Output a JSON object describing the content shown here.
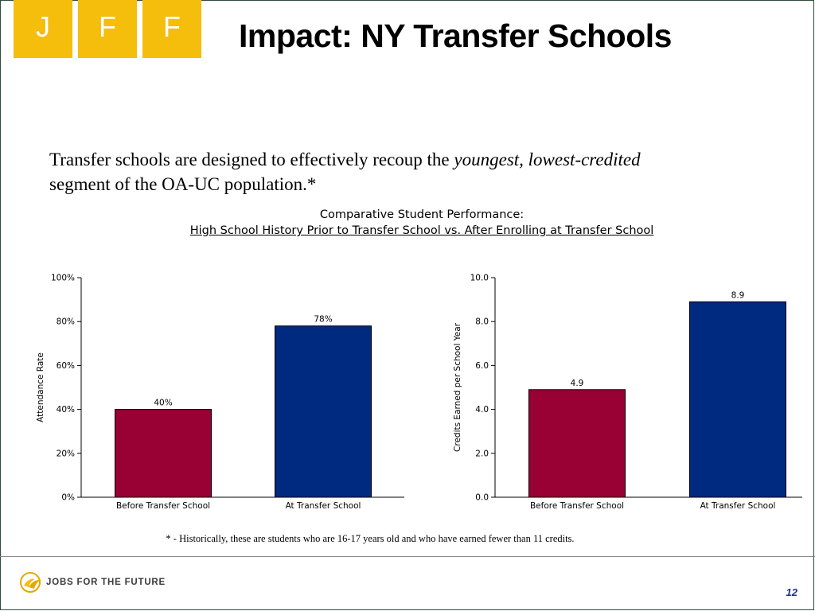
{
  "header": {
    "logo_letters": [
      "J",
      "F",
      "F"
    ],
    "title": "Impact:  NY Transfer Schools"
  },
  "intro": {
    "part1": "Transfer schools are designed to effectively recoup the ",
    "emphasis": "youngest, lowest-credited",
    "part2": " segment of the OA-UC population.*"
  },
  "chart_heading": {
    "line1": "Comparative Student Performance:",
    "line2": "High School History Prior to Transfer School vs. After Enrolling at Transfer School"
  },
  "chart_data": [
    {
      "type": "bar",
      "categories": [
        "Before Transfer School",
        "At Transfer School"
      ],
      "values": [
        40,
        78
      ],
      "value_labels": [
        "40%",
        "78%"
      ],
      "colors": [
        "#990033",
        "#002a7f"
      ],
      "ylabel": "Attendance Rate",
      "ylim": [
        0,
        100
      ],
      "ticks": [
        0,
        20,
        40,
        60,
        80,
        100
      ],
      "tick_labels": [
        "0%",
        "20%",
        "40%",
        "60%",
        "80%",
        "100%"
      ]
    },
    {
      "type": "bar",
      "categories": [
        "Before Transfer School",
        "At Transfer School"
      ],
      "values": [
        4.9,
        8.9
      ],
      "value_labels": [
        "4.9",
        "8.9"
      ],
      "colors": [
        "#990033",
        "#002a7f"
      ],
      "ylabel": "Credits Earned per School Year",
      "ylim": [
        0,
        10
      ],
      "ticks": [
        0,
        2,
        4,
        6,
        8,
        10
      ],
      "tick_labels": [
        "0.0",
        "2.0",
        "4.0",
        "6.0",
        "8.0",
        "10.0"
      ]
    }
  ],
  "footnote": "* - Historically, these are students who are 16-17 years old and who have earned fewer than 11 credits.",
  "footer": {
    "brand": "JOBS FOR THE FUTURE",
    "page_number": "12"
  },
  "colors": {
    "logo_gold": "#f5bd0c",
    "page_number": "#1b2f8a"
  }
}
